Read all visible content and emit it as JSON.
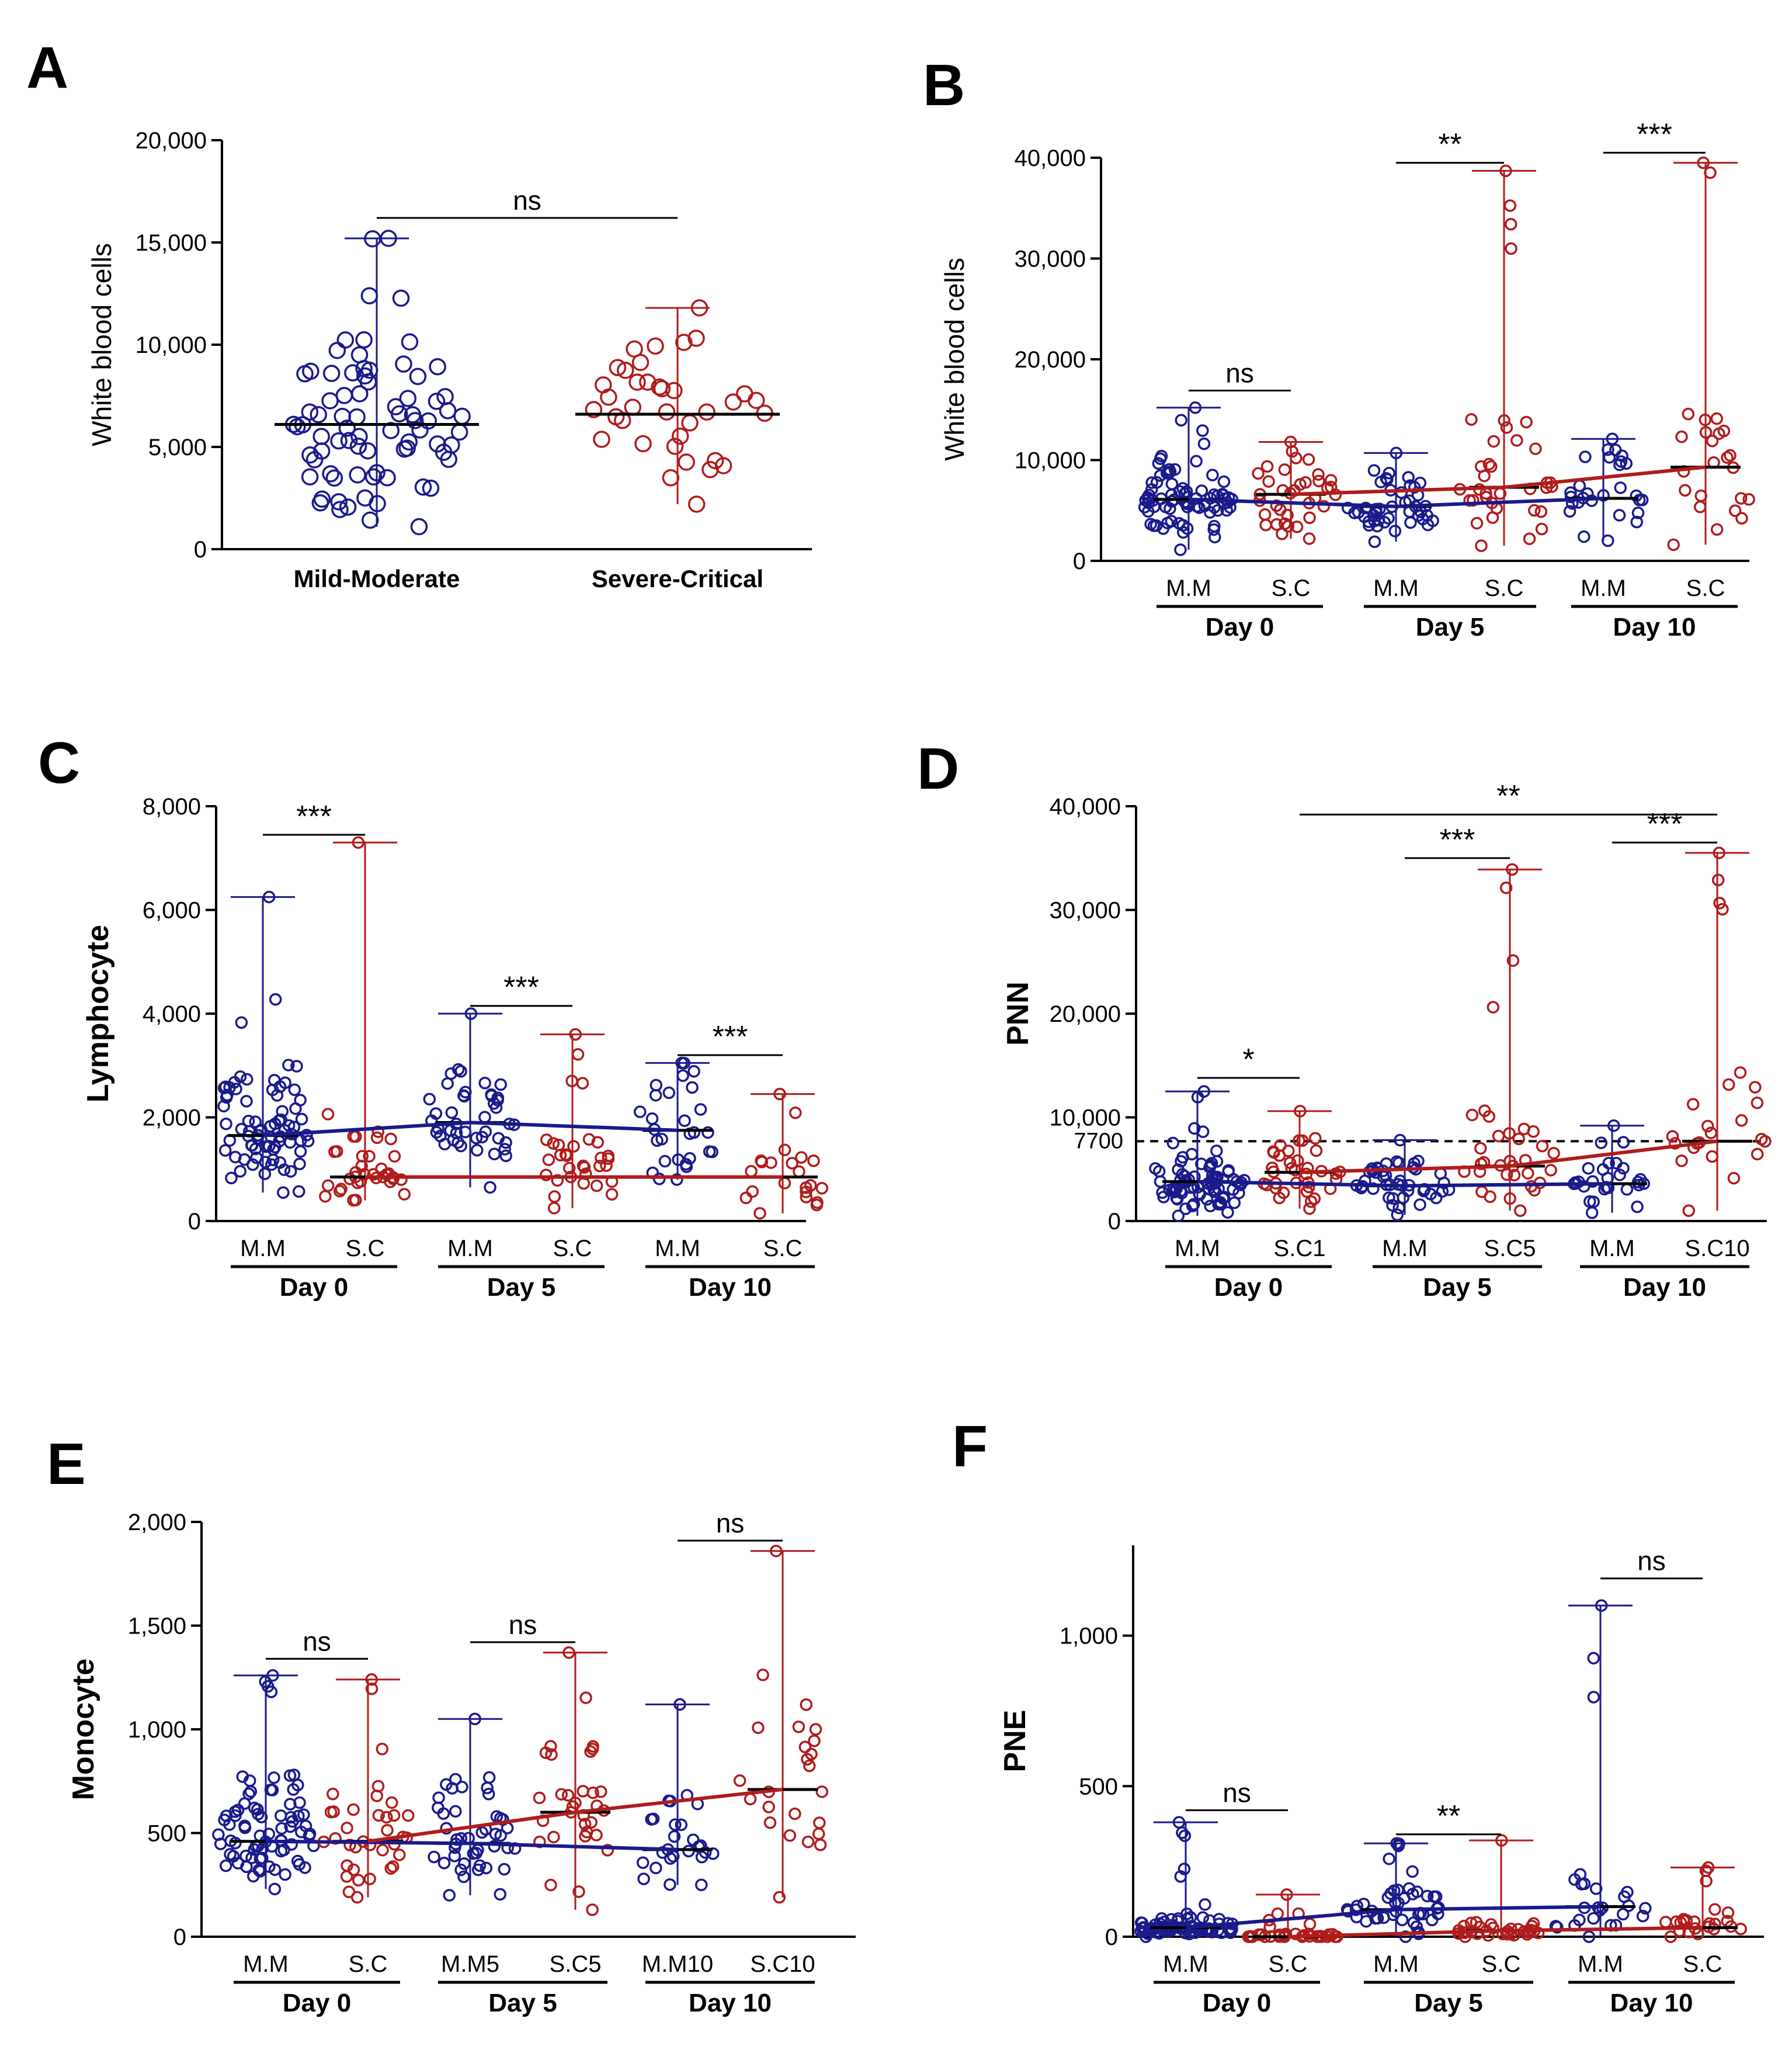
{
  "colors": {
    "blue": "#1a1a8c",
    "red": "#b01c1c",
    "axis": "#000000",
    "dashed": "#000000"
  },
  "chart_data": [
    {
      "id": "A",
      "type": "scatter",
      "panel_label": "A",
      "ylabel": "White blood cells",
      "ylim": [
        0,
        20000
      ],
      "yticks": [
        0,
        5000,
        10000,
        15000,
        20000
      ],
      "ytick_labels": [
        "0",
        "5,000",
        "10,000",
        "15,000",
        "20,000"
      ],
      "groups": [
        {
          "name": "Mild-Moderate",
          "color": "blue",
          "median": 6100,
          "min": 1100,
          "max": 15200,
          "n": 78
        },
        {
          "name": "Severe-Critical",
          "color": "red",
          "median": 6600,
          "min": 2200,
          "max": 11800,
          "n": 36
        }
      ],
      "brackets": [
        {
          "from": 0,
          "to": 1,
          "label": "ns",
          "y": 16200
        }
      ]
    },
    {
      "id": "B",
      "type": "scatter",
      "panel_label": "B",
      "ylabel": "White blood cells",
      "ylim": [
        0,
        40000
      ],
      "yticks": [
        0,
        10000,
        20000,
        30000,
        40000
      ],
      "ytick_labels": [
        "0",
        "10,000",
        "20,000",
        "30,000",
        "40,000"
      ],
      "groups": [
        {
          "name": "M.M",
          "color": "blue",
          "median": 6100,
          "min": 1100,
          "max": 15200,
          "n": 78
        },
        {
          "name": "S.C",
          "color": "red",
          "median": 6600,
          "min": 2200,
          "max": 11800,
          "n": 36
        },
        {
          "name": "M.M",
          "color": "blue",
          "median": 5400,
          "min": 1900,
          "max": 10700,
          "n": 44
        },
        {
          "name": "S.C",
          "color": "red",
          "median": 7300,
          "min": 1500,
          "max": 38700,
          "n": 36
        },
        {
          "name": "M.M",
          "color": "blue",
          "median": 6200,
          "min": 2000,
          "max": 12100,
          "n": 28
        },
        {
          "name": "S.C",
          "color": "red",
          "median": 9300,
          "min": 1600,
          "max": 39500,
          "n": 24
        }
      ],
      "days": [
        "Day 0",
        "Day 5",
        "Day 10"
      ],
      "trend_blue": [
        6100,
        5400,
        6200
      ],
      "trend_red": [
        6600,
        7300,
        9300
      ],
      "brackets": [
        {
          "from": 0,
          "to": 1,
          "label": "ns",
          "y": 16900
        },
        {
          "from": 2,
          "to": 3,
          "label": "**",
          "y": 39500
        },
        {
          "from": 4,
          "to": 5,
          "label": "***",
          "y": 40500
        }
      ]
    },
    {
      "id": "C",
      "type": "scatter",
      "panel_label": "C",
      "ylabel": "Lymphocyte",
      "ylim": [
        0,
        8000
      ],
      "yticks": [
        0,
        2000,
        4000,
        6000,
        8000
      ],
      "ytick_labels": [
        "0",
        "2,000",
        "4,000",
        "6,000",
        "8,000"
      ],
      "groups": [
        {
          "name": "M.M",
          "color": "blue",
          "median": 1650,
          "min": 550,
          "max": 6250,
          "n": 78
        },
        {
          "name": "S.C",
          "color": "red",
          "median": 850,
          "min": 400,
          "max": 7300,
          "n": 36
        },
        {
          "name": "M.M",
          "color": "blue",
          "median": 1900,
          "min": 650,
          "max": 4000,
          "n": 44
        },
        {
          "name": "S.C",
          "color": "red",
          "median": 850,
          "min": 250,
          "max": 3600,
          "n": 32
        },
        {
          "name": "M.M",
          "color": "blue",
          "median": 1750,
          "min": 800,
          "max": 3050,
          "n": 28
        },
        {
          "name": "S.C",
          "color": "red",
          "median": 850,
          "min": 150,
          "max": 2450,
          "n": 22
        }
      ],
      "days": [
        "Day 0",
        "Day 5",
        "Day 10"
      ],
      "trend_blue": [
        1650,
        1900,
        1750
      ],
      "trend_red": [
        850,
        850,
        850
      ],
      "brackets": [
        {
          "from": 0,
          "to": 1,
          "label": "***",
          "y": 7450
        },
        {
          "from": 2,
          "to": 3,
          "label": "***",
          "y": 4150
        },
        {
          "from": 4,
          "to": 5,
          "label": "***",
          "y": 3200
        }
      ]
    },
    {
      "id": "D",
      "type": "scatter",
      "panel_label": "D",
      "ylabel": "PNN",
      "ylim": [
        0,
        40000
      ],
      "yticks": [
        0,
        10000,
        20000,
        30000,
        40000
      ],
      "ytick_labels": [
        "0",
        "10,000",
        "20,000",
        "30,000",
        "40,000"
      ],
      "threshold": 7700,
      "threshold_label": "7700",
      "groups": [
        {
          "name": "M.M",
          "color": "blue",
          "median": 3800,
          "min": 500,
          "max": 12500,
          "n": 78
        },
        {
          "name": "S.C1",
          "color": "red",
          "median": 4700,
          "min": 1200,
          "max": 10600,
          "n": 36
        },
        {
          "name": "M.M",
          "color": "blue",
          "median": 3400,
          "min": 600,
          "max": 7800,
          "n": 44
        },
        {
          "name": "S.C5",
          "color": "red",
          "median": 5300,
          "min": 1000,
          "max": 33900,
          "n": 34
        },
        {
          "name": "M.M",
          "color": "blue",
          "median": 3600,
          "min": 800,
          "max": 9200,
          "n": 28
        },
        {
          "name": "S.C10",
          "color": "red",
          "median": 7700,
          "min": 1000,
          "max": 35500,
          "n": 24
        }
      ],
      "days": [
        "Day 0",
        "Day 5",
        "Day 10"
      ],
      "trend_blue": [
        3800,
        3400,
        3600
      ],
      "trend_red": [
        4700,
        5300,
        7700
      ],
      "brackets": [
        {
          "from": 0,
          "to": 1,
          "label": "*",
          "y": 13800
        },
        {
          "from": 2,
          "to": 3,
          "label": "***",
          "y": 35000
        },
        {
          "from": 4,
          "to": 5,
          "label": "***",
          "y": 36500
        },
        {
          "from": 1,
          "to": 5,
          "label": "**",
          "y": 39200
        }
      ]
    },
    {
      "id": "E",
      "type": "scatter",
      "panel_label": "E",
      "ylabel": "Monocyte",
      "ylim": [
        0,
        2000
      ],
      "yticks": [
        0,
        500,
        1000,
        1500,
        2000
      ],
      "ytick_labels": [
        "0",
        "500",
        "1,000",
        "1,500",
        "2,000"
      ],
      "groups": [
        {
          "name": "M.M",
          "color": "blue",
          "median": 460,
          "min": 230,
          "max": 1260,
          "n": 78
        },
        {
          "name": "S.C",
          "color": "red",
          "median": 460,
          "min": 190,
          "max": 1240,
          "n": 36
        },
        {
          "name": "M.M5",
          "color": "blue",
          "median": 450,
          "min": 200,
          "max": 1050,
          "n": 44
        },
        {
          "name": "S.C5",
          "color": "red",
          "median": 600,
          "min": 130,
          "max": 1370,
          "n": 32
        },
        {
          "name": "M.M10",
          "color": "blue",
          "median": 420,
          "min": 250,
          "max": 1120,
          "n": 26
        },
        {
          "name": "S.C10",
          "color": "red",
          "median": 710,
          "min": 190,
          "max": 1860,
          "n": 24
        }
      ],
      "days": [
        "Day 0",
        "Day 5",
        "Day 10"
      ],
      "trend_blue": [
        460,
        450,
        420
      ],
      "trend_red": [
        460,
        600,
        710
      ],
      "brackets": [
        {
          "from": 0,
          "to": 1,
          "label": "ns",
          "y": 1340
        },
        {
          "from": 2,
          "to": 3,
          "label": "ns",
          "y": 1420
        },
        {
          "from": 4,
          "to": 5,
          "label": "ns",
          "y": 1910
        }
      ]
    },
    {
      "id": "F",
      "type": "scatter",
      "panel_label": "F",
      "ylabel": "PNE",
      "ylim": [
        0,
        1300
      ],
      "yticks": [
        0,
        500,
        1000
      ],
      "ytick_labels": [
        "0",
        "500",
        "1,000"
      ],
      "groups": [
        {
          "name": "M.M",
          "color": "blue",
          "median": 30,
          "min": 0,
          "max": 380,
          "n": 78
        },
        {
          "name": "S.C",
          "color": "red",
          "median": 0,
          "min": 0,
          "max": 140,
          "n": 36
        },
        {
          "name": "M.M",
          "color": "blue",
          "median": 90,
          "min": 0,
          "max": 310,
          "n": 44
        },
        {
          "name": "S.C",
          "color": "red",
          "median": 20,
          "min": 0,
          "max": 320,
          "n": 34
        },
        {
          "name": "M.M",
          "color": "blue",
          "median": 100,
          "min": 0,
          "max": 1100,
          "n": 26
        },
        {
          "name": "S.C",
          "color": "red",
          "median": 30,
          "min": 0,
          "max": 230,
          "n": 24
        }
      ],
      "days": [
        "Day 0",
        "Day 5",
        "Day 10"
      ],
      "trend_blue": [
        30,
        90,
        100
      ],
      "trend_red": [
        0,
        20,
        30
      ],
      "brackets": [
        {
          "from": 0,
          "to": 1,
          "label": "ns",
          "y": 420
        },
        {
          "from": 2,
          "to": 3,
          "label": "**",
          "y": 340
        },
        {
          "from": 4,
          "to": 5,
          "label": "ns",
          "y": 1190
        }
      ]
    }
  ]
}
